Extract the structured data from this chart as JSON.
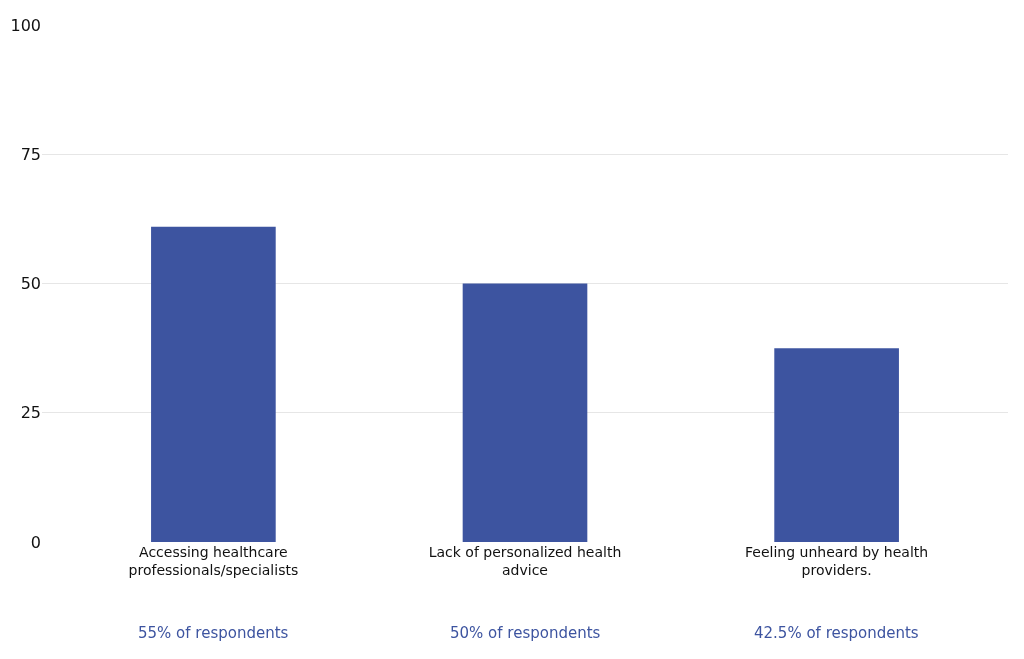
{
  "chart_data": {
    "type": "bar",
    "categories": [
      "Accessing healthcare professionals/specialists",
      "Lack of personalized health advice",
      "Feeling unheard by health providers."
    ],
    "values": [
      61,
      50,
      37.5
    ],
    "color": "#3d54a0",
    "ylim": [
      0,
      100
    ],
    "yticks": [
      0,
      25,
      50,
      75,
      100
    ],
    "grid": "y",
    "annotations": [
      "55% of respondents",
      "50% of respondents",
      "42.5% of respondents"
    ]
  }
}
